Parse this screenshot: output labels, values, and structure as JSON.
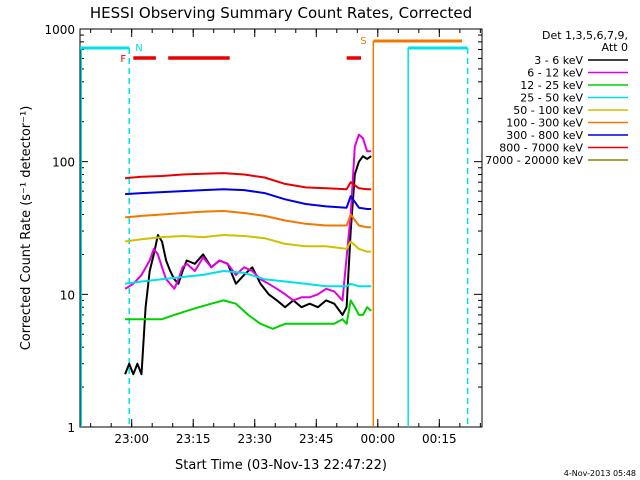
{
  "colors": {
    "background": "#ffffff",
    "axes": "#000000",
    "cyan": "#00e0e8",
    "orange": "#f07800",
    "red": "#e80000"
  },
  "chart_data": {
    "type": "line",
    "title": "HESSI Observing Summary Count Rates, Corrected",
    "xlabel": "Start Time (03-Nov-13 22:47:22)",
    "ylabel": "Corrected Count Rate (s⁻¹ detector⁻¹)",
    "y_scale": "log",
    "ylim": [
      1,
      1000
    ],
    "x_unit": "minutes after 22:47:22",
    "xlim": [
      0,
      98
    ],
    "x_ticks": [
      {
        "label": "23:00",
        "x": 12.6
      },
      {
        "label": "23:15",
        "x": 27.6
      },
      {
        "label": "23:30",
        "x": 42.6
      },
      {
        "label": "23:45",
        "x": 57.6
      },
      {
        "label": "00:00",
        "x": 72.6
      },
      {
        "label": "00:15",
        "x": 87.6
      }
    ],
    "y_ticks": [
      {
        "label": "1",
        "y": 1
      },
      {
        "label": "10",
        "y": 10
      },
      {
        "label": "100",
        "y": 100
      },
      {
        "label": "1000",
        "y": 1000
      }
    ],
    "legend": {
      "header_lines": [
        "Det 1,3,5,6,7,9,",
        "Att 0"
      ],
      "placement": "right"
    },
    "series": [
      {
        "name": "3 - 6 keV",
        "color": "#000000",
        "x": [
          11,
          12,
          13,
          14,
          15,
          16,
          17,
          18,
          19,
          20,
          21,
          22,
          23,
          24,
          25,
          26,
          28,
          30,
          32,
          34,
          36,
          38,
          40,
          42,
          44,
          46,
          48,
          50,
          52,
          54,
          56,
          58,
          60,
          62,
          64,
          65,
          66,
          67,
          68,
          69,
          70,
          71
        ],
        "y": [
          2.5,
          3,
          2.5,
          3,
          2.5,
          8,
          15,
          20,
          28,
          25,
          18,
          15,
          13,
          12,
          15,
          18,
          17,
          20,
          16,
          18,
          17,
          12,
          14,
          16,
          12,
          10,
          9,
          8,
          9,
          8,
          8.5,
          8,
          9,
          8.5,
          7,
          8,
          30,
          80,
          100,
          110,
          105,
          110
        ]
      },
      {
        "name": "6 - 12 keV",
        "color": "#e000e0",
        "x": [
          11,
          13,
          15,
          17,
          18,
          19,
          20,
          21,
          22,
          23,
          24,
          25,
          26,
          28,
          30,
          32,
          34,
          36,
          38,
          40,
          42,
          44,
          46,
          48,
          50,
          52,
          54,
          56,
          58,
          60,
          62,
          64,
          66,
          67,
          68,
          69,
          70,
          71
        ],
        "y": [
          11,
          12,
          14,
          18,
          22,
          20,
          16,
          13,
          12,
          11,
          13,
          16,
          17,
          15,
          19,
          16,
          18,
          17,
          14,
          16,
          15,
          13,
          12,
          11,
          10,
          9,
          9.5,
          9.5,
          10,
          11,
          10.5,
          9,
          40,
          130,
          160,
          150,
          120,
          120
        ]
      },
      {
        "name": "12 - 25 keV",
        "color": "#00d000",
        "x": [
          11,
          14,
          17,
          20,
          23,
          26,
          29,
          32,
          35,
          38,
          41,
          44,
          47,
          50,
          53,
          56,
          59,
          62,
          64,
          65,
          66,
          67,
          68,
          69,
          70,
          71
        ],
        "y": [
          6.5,
          6.5,
          6.5,
          6.5,
          7,
          7.5,
          8,
          8.5,
          9,
          8.5,
          7,
          6,
          5.5,
          6,
          6,
          6,
          6,
          6,
          6.5,
          6,
          9,
          8,
          7,
          7,
          8,
          7.5
        ]
      },
      {
        "name": "25 - 50 keV",
        "color": "#00e0e8",
        "x": [
          11,
          15,
          20,
          25,
          30,
          35,
          40,
          45,
          50,
          55,
          60,
          65,
          66,
          68,
          70,
          71
        ],
        "y": [
          12,
          12.5,
          13,
          13.5,
          14,
          15,
          14.5,
          13,
          12.5,
          12,
          11.5,
          11.5,
          12,
          11.5,
          11.5,
          11.5
        ]
      },
      {
        "name": "50 - 100 keV",
        "color": "#d0c000",
        "x": [
          11,
          15,
          20,
          25,
          30,
          35,
          40,
          45,
          50,
          55,
          60,
          65,
          66,
          68,
          70,
          71
        ],
        "y": [
          25,
          26,
          27,
          27.5,
          27,
          28,
          27.5,
          26.5,
          24,
          23,
          23,
          22,
          25,
          22,
          21,
          21
        ]
      },
      {
        "name": "100 - 300 keV",
        "color": "#f07800",
        "x": [
          11,
          15,
          20,
          25,
          30,
          35,
          40,
          45,
          50,
          55,
          60,
          65,
          66,
          68,
          70,
          71
        ],
        "y": [
          38,
          39,
          40,
          41,
          42,
          42.5,
          41,
          39,
          36,
          34,
          33,
          33,
          40,
          33,
          32,
          32
        ]
      },
      {
        "name": "300 - 800 keV",
        "color": "#0000e0",
        "x": [
          11,
          15,
          20,
          25,
          30,
          35,
          40,
          45,
          50,
          55,
          60,
          65,
          66,
          68,
          70,
          71
        ],
        "y": [
          57,
          58,
          59,
          60,
          61,
          62,
          61,
          58,
          52,
          48,
          46,
          45,
          55,
          45,
          44,
          44
        ]
      },
      {
        "name": "800 - 7000 keV",
        "color": "#e80000",
        "x": [
          11,
          15,
          20,
          25,
          30,
          35,
          40,
          45,
          50,
          55,
          60,
          65,
          66,
          68,
          70,
          71
        ],
        "y": [
          75,
          77,
          78,
          80,
          81,
          82,
          80,
          76,
          68,
          64,
          63,
          62,
          70,
          63,
          62,
          62
        ]
      },
      {
        "name": "7000 - 20000 keV",
        "color": "#908000",
        "x": [],
        "y": []
      }
    ],
    "flags": {
      "night_label": "N",
      "flare_label": "F",
      "saa_label": "S"
    },
    "grid": false
  },
  "footer": {
    "timestamp": "4-Nov-2013 05:48"
  }
}
